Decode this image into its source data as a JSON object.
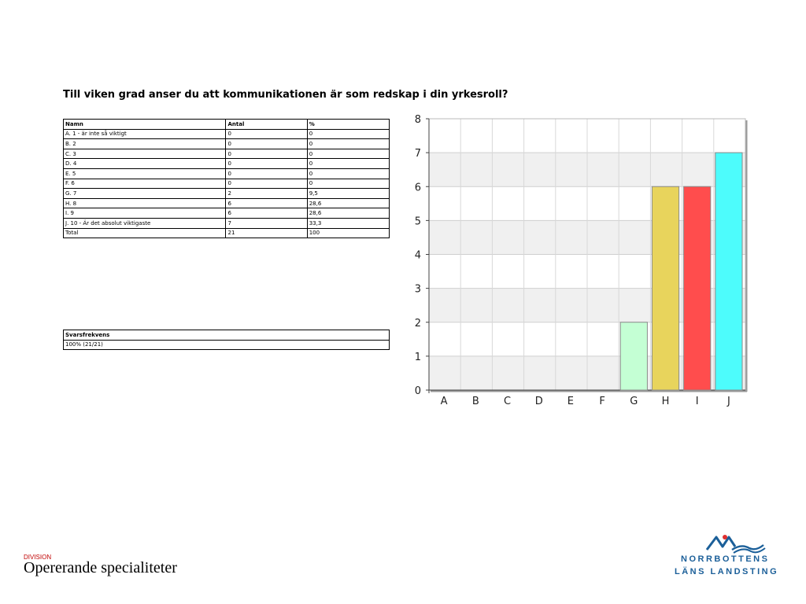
{
  "question": "Till viken grad anser du att kommunikationen är som redskap i din yrkesroll?",
  "results_table": {
    "headers": [
      "Namn",
      "Antal",
      "%"
    ],
    "rows": [
      [
        "A. 1 - är inte så viktigt",
        "0",
        "0"
      ],
      [
        "B. 2",
        "0",
        "0"
      ],
      [
        "C. 3",
        "0",
        "0"
      ],
      [
        "D. 4",
        "0",
        "0"
      ],
      [
        "E. 5",
        "0",
        "0"
      ],
      [
        "F. 6",
        "0",
        "0"
      ],
      [
        "G. 7",
        "2",
        "9,5"
      ],
      [
        "H. 8",
        "6",
        "28,6"
      ],
      [
        "I. 9",
        "6",
        "28,6"
      ],
      [
        "J. 10 - Är det absolut viktigaste",
        "7",
        "33,3"
      ],
      [
        "Total",
        "21",
        "100"
      ]
    ]
  },
  "frequency_table": {
    "header": "Svarsfrekvens",
    "value": "100% (21/21)"
  },
  "chart_data": {
    "type": "bar",
    "categories": [
      "A",
      "B",
      "C",
      "D",
      "E",
      "F",
      "G",
      "H",
      "I",
      "J"
    ],
    "values": [
      0,
      0,
      0,
      0,
      0,
      0,
      2,
      6,
      6,
      7
    ],
    "colors": [
      "#c8ffd8",
      "#c8ffd8",
      "#c8ffd8",
      "#c8ffd8",
      "#c8ffd8",
      "#c8ffd8",
      "#c4ffd4",
      "#e8d45c",
      "#ff4d4d",
      "#4dfcfc"
    ],
    "ylim": [
      0,
      8
    ],
    "yticks": [
      0,
      1,
      2,
      3,
      4,
      5,
      6,
      7,
      8
    ],
    "grid": true,
    "title": "",
    "xlabel": "",
    "ylabel": ""
  },
  "footer": {
    "division_label": "DIVISION",
    "division_name": "Opererande specialiteter"
  },
  "logo": {
    "line1": "NORRBOTTENS",
    "line2": "LÄNS LANDSTING",
    "primary_color": "#1b5f99",
    "accent_color": "#e03030"
  }
}
